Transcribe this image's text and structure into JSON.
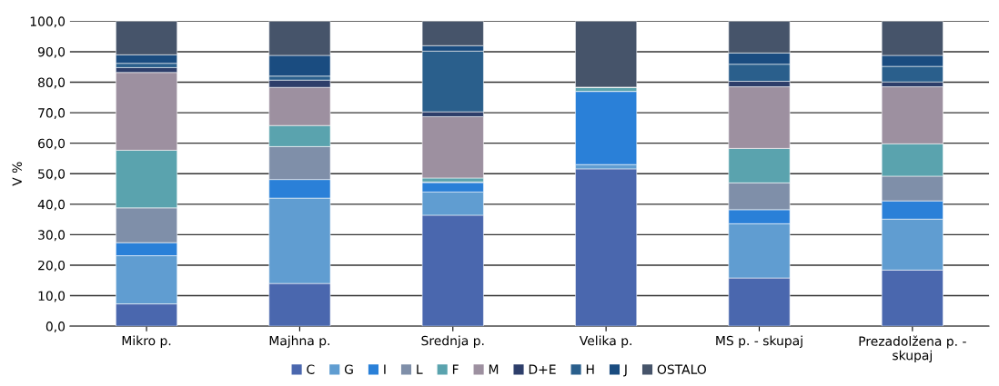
{
  "chart_data": {
    "type": "bar",
    "stacked": true,
    "ylabel": "V %",
    "categories": [
      "Mikro p.",
      "Majhna p.",
      "Srednja p.",
      "Velika p.",
      "MS p. - skupaj",
      "Prezadolžena p. -\nskupaj"
    ],
    "series": [
      {
        "name": "C",
        "color": "#4a67ae",
        "values": [
          7.3,
          14.0,
          36.4,
          51.6,
          15.8,
          18.4
        ]
      },
      {
        "name": "G",
        "color": "#609dd1",
        "values": [
          15.8,
          28.0,
          7.6,
          1.4,
          17.8,
          16.7
        ]
      },
      {
        "name": "I",
        "color": "#2a80d8",
        "values": [
          4.3,
          6.1,
          3.1,
          24.0,
          4.6,
          6.0
        ]
      },
      {
        "name": "L",
        "color": "#7f8fa9",
        "values": [
          11.4,
          10.8,
          0.2,
          0,
          8.8,
          8.1
        ]
      },
      {
        "name": "F",
        "color": "#5aa3ae",
        "values": [
          18.9,
          6.9,
          1.3,
          1.4,
          11.3,
          10.6
        ]
      },
      {
        "name": "M",
        "color": "#9d90a0",
        "values": [
          25.5,
          12.5,
          20.1,
          0,
          20.2,
          18.7
        ]
      },
      {
        "name": "D+E",
        "color": "#2d3e6a",
        "values": [
          1.6,
          2.4,
          1.6,
          0,
          1.8,
          1.6
        ]
      },
      {
        "name": "H",
        "color": "#2a5f8c",
        "values": [
          1.4,
          1.3,
          19.9,
          0,
          5.6,
          5.1
        ]
      },
      {
        "name": "J",
        "color": "#1a4c80",
        "values": [
          2.8,
          6.8,
          1.8,
          0,
          3.7,
          3.6
        ]
      },
      {
        "name": "OSTALO",
        "color": "#46546a",
        "values": [
          11.0,
          11.2,
          8.0,
          21.6,
          10.4,
          11.2
        ]
      }
    ],
    "ylim": [
      0,
      100
    ],
    "yticks": [
      {
        "value": 0,
        "label": "0,0"
      },
      {
        "value": 10,
        "label": "10,0"
      },
      {
        "value": 20,
        "label": "20,0"
      },
      {
        "value": 30,
        "label": "30,0"
      },
      {
        "value": 40,
        "label": "40,0"
      },
      {
        "value": 50,
        "label": "50,0"
      },
      {
        "value": 60,
        "label": "60,0"
      },
      {
        "value": 70,
        "label": "70,0"
      },
      {
        "value": 80,
        "label": "80,0"
      },
      {
        "value": 90,
        "label": "90,0"
      },
      {
        "value": 100,
        "label": "100,0"
      }
    ],
    "grid": "y",
    "legend": "bottom"
  }
}
